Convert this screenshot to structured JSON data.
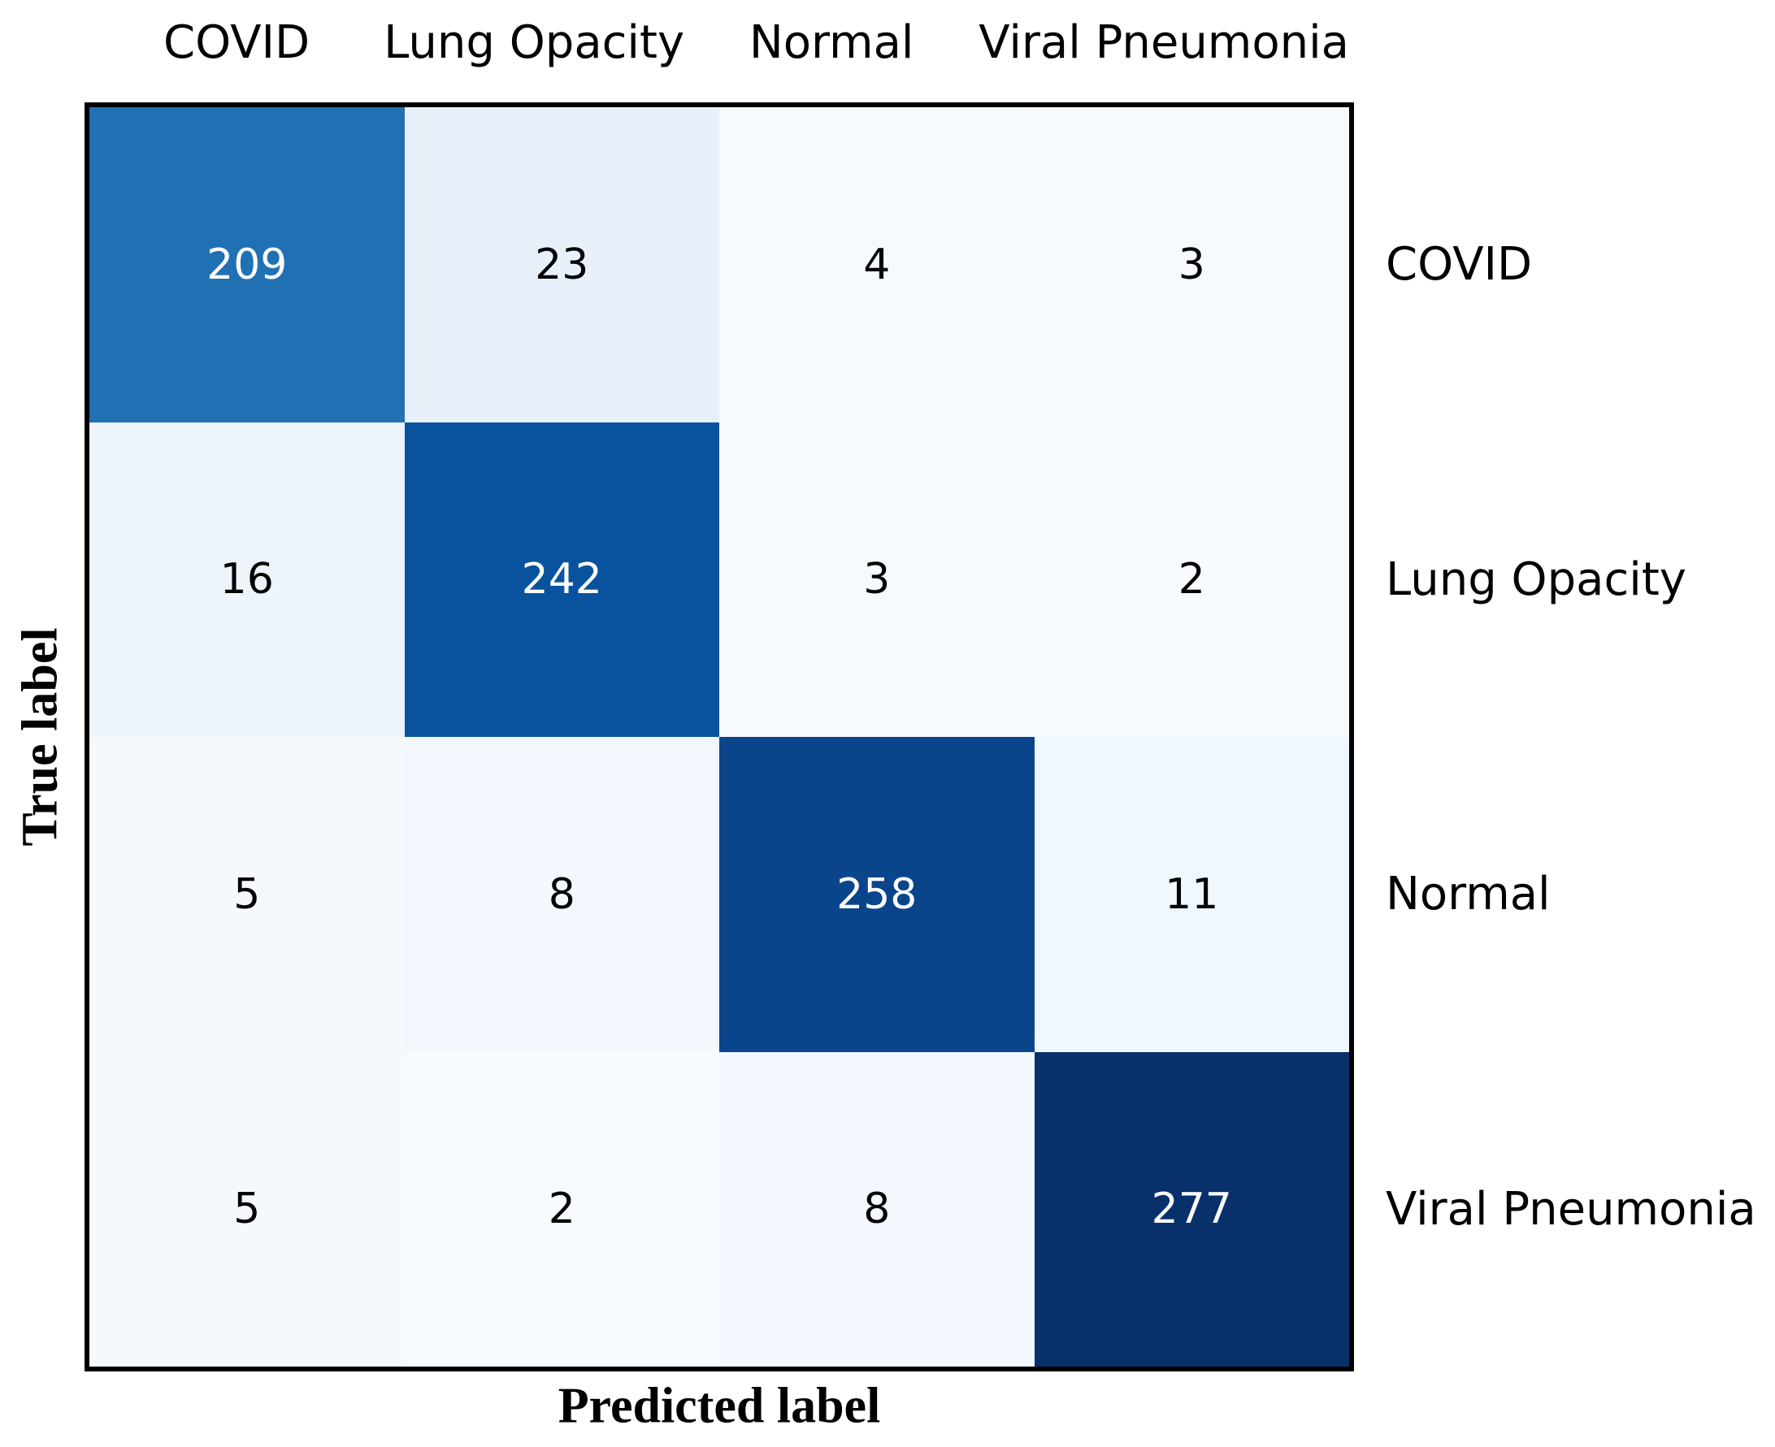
{
  "figure": {
    "background": "#ffffff",
    "frame_color": "#000000"
  },
  "chart_data": {
    "type": "heatmap",
    "subtype": "confusion_matrix",
    "title": "",
    "xlabel": "Predicted label",
    "ylabel": "True label",
    "x_tick_labels": [
      "COVID",
      "Lung Opacity",
      "Normal",
      "Viral Pneumonia"
    ],
    "y_tick_labels": [
      "COVID",
      "Lung Opacity",
      "Normal",
      "Viral Pneumonia"
    ],
    "matrix": [
      [
        209,
        23,
        4,
        3
      ],
      [
        16,
        242,
        3,
        2
      ],
      [
        5,
        8,
        258,
        11
      ],
      [
        5,
        2,
        8,
        277
      ]
    ],
    "colormap": "Blues",
    "value_range": [
      2,
      277
    ],
    "legend": "none",
    "grid": "off",
    "cell_colors": [
      [
        "#2070b4",
        "#e8f1fa",
        "#f5fafe",
        "#f6fafe"
      ],
      [
        "#edf4fc",
        "#09529d",
        "#f6fafe",
        "#f7fbff"
      ],
      [
        "#f5f9fe",
        "#f3f8fe",
        "#0a458c",
        "#f0f7fd"
      ],
      [
        "#f5f9fe",
        "#f7fbff",
        "#f3f8fe",
        "#08306b"
      ]
    ],
    "cell_text_colors": [
      [
        "#ffffff",
        "#000000",
        "#000000",
        "#000000"
      ],
      [
        "#000000",
        "#ffffff",
        "#000000",
        "#000000"
      ],
      [
        "#000000",
        "#000000",
        "#ffffff",
        "#000000"
      ],
      [
        "#000000",
        "#000000",
        "#000000",
        "#ffffff"
      ]
    ]
  }
}
